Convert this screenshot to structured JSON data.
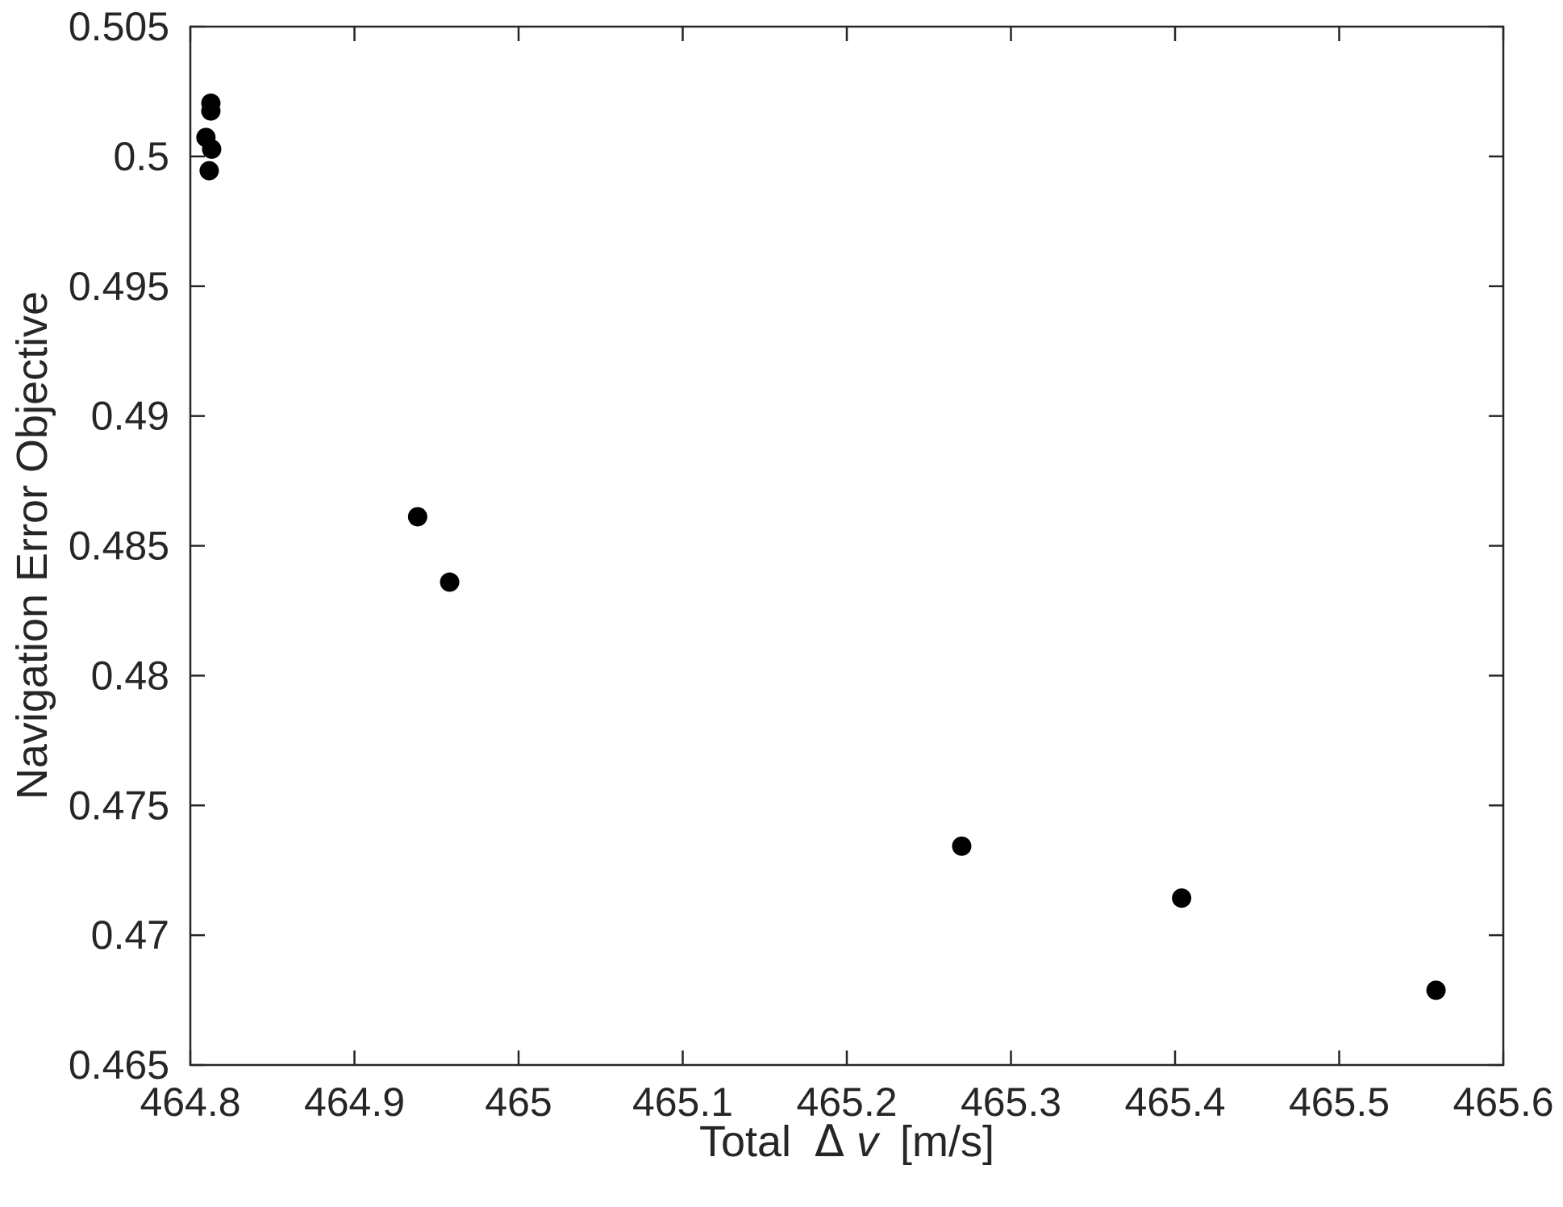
{
  "chart_data": {
    "type": "scatter",
    "xlabel_prefix": "Total",
    "xlabel_symbol": "Δ",
    "xlabel_var": "v",
    "xlabel_units": "[m/s]",
    "ylabel": "Navigation Error Objective",
    "xlim": [
      464.8,
      465.6
    ],
    "ylim": [
      0.465,
      0.505
    ],
    "xticks": [
      "464.8",
      "464.9",
      "465",
      "465.1",
      "465.2",
      "465.3",
      "465.4",
      "465.5",
      "465.6"
    ],
    "yticks": [
      "0.465",
      "0.47",
      "0.475",
      "0.48",
      "0.485",
      "0.49",
      "0.495",
      "0.5",
      "0.505"
    ],
    "grid": false,
    "marker_color": "#000000",
    "points": [
      {
        "x": 464.8125,
        "y": 0.50205
      },
      {
        "x": 464.8125,
        "y": 0.50175
      },
      {
        "x": 464.8095,
        "y": 0.50073
      },
      {
        "x": 464.813,
        "y": 0.50028
      },
      {
        "x": 464.8115,
        "y": 0.49945
      },
      {
        "x": 464.9385,
        "y": 0.48612
      },
      {
        "x": 464.958,
        "y": 0.4836
      },
      {
        "x": 465.27,
        "y": 0.47343
      },
      {
        "x": 465.404,
        "y": 0.47143
      },
      {
        "x": 465.559,
        "y": 0.46788
      }
    ]
  }
}
